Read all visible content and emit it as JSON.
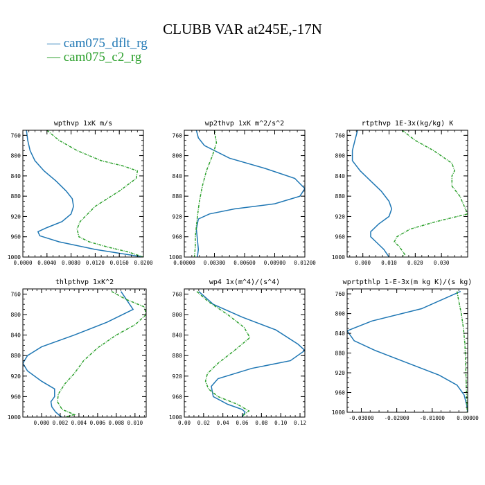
{
  "title": "CLUBB VAR at245E,-17N",
  "colors": {
    "series0": "#1f77b4",
    "series1": "#2ca02c",
    "axis": "#000000"
  },
  "legend": [
    {
      "label": "— cam075_dflt_rg",
      "color": "#1f77b4"
    },
    {
      "label": "— cam075_c2_rg",
      "color": "#2ca02c"
    }
  ],
  "chart_data": [
    {
      "type": "line",
      "title": "wpthvp  1xK m/s",
      "xlim": [
        0,
        0.02
      ],
      "ylim": [
        1000,
        750
      ],
      "xticks": [
        0,
        0.004,
        0.008,
        0.012,
        0.016,
        0.02
      ],
      "xtick_labels": [
        "0.0000",
        "0.0040",
        "0.0080",
        "0.0120",
        "0.0160",
        "0.0200"
      ],
      "yticks": [
        760,
        800,
        840,
        880,
        920,
        960,
        1000
      ],
      "series": [
        {
          "name": "cam075_dflt_rg",
          "x": [
            0.0006,
            0.0008,
            0.0012,
            0.002,
            0.0035,
            0.0055,
            0.0072,
            0.0082,
            0.0084,
            0.008,
            0.0065,
            0.004,
            0.0025,
            0.0028,
            0.006,
            0.012,
            0.02
          ],
          "y": [
            750,
            770,
            790,
            810,
            830,
            850,
            870,
            885,
            900,
            915,
            930,
            942,
            950,
            958,
            970,
            985,
            1000
          ]
        },
        {
          "name": "cam075_c2_rg",
          "x": [
            0.004,
            0.006,
            0.009,
            0.013,
            0.0165,
            0.019,
            0.0188,
            0.016,
            0.012,
            0.0095,
            0.009,
            0.0093,
            0.011,
            0.014,
            0.0175,
            0.02
          ],
          "y": [
            750,
            770,
            790,
            810,
            820,
            830,
            845,
            870,
            900,
            930,
            945,
            960,
            970,
            980,
            990,
            1000
          ]
        }
      ]
    },
    {
      "type": "line",
      "title": "wp2thvp  1xK m^2/s^2",
      "xlim": [
        0,
        0.012
      ],
      "ylim": [
        1000,
        750
      ],
      "xticks": [
        0,
        0.003,
        0.006,
        0.009,
        0.012
      ],
      "xtick_labels": [
        "0.00000",
        "0.00300",
        "0.00600",
        "0.00900",
        "0.01200"
      ],
      "yticks": [
        760,
        800,
        840,
        880,
        920,
        960,
        1000
      ],
      "series": [
        {
          "name": "cam075_dflt_rg",
          "x": [
            0.0012,
            0.0014,
            0.002,
            0.0045,
            0.008,
            0.011,
            0.012,
            0.0115,
            0.009,
            0.005,
            0.0025,
            0.0014,
            0.0012,
            0.0013,
            0.0014,
            0.0013
          ],
          "y": [
            750,
            765,
            780,
            805,
            825,
            845,
            865,
            880,
            895,
            905,
            915,
            925,
            945,
            965,
            985,
            1000
          ]
        },
        {
          "name": "cam075_c2_rg",
          "x": [
            0.003,
            0.0032,
            0.0028,
            0.0022,
            0.0018,
            0.0015,
            0.0013,
            0.0012,
            0.0011,
            0.0011,
            0.001
          ],
          "y": [
            750,
            775,
            800,
            830,
            860,
            890,
            920,
            940,
            960,
            980,
            1000
          ]
        }
      ]
    },
    {
      "type": "line",
      "title": "rtpthvp  1E-3x(kg/kg) K",
      "xlim": [
        -0.006,
        0.04
      ],
      "ylim": [
        1000,
        750
      ],
      "xticks": [
        0,
        0.01,
        0.02,
        0.03
      ],
      "xtick_labels": [
        "0.000",
        "0.010",
        "0.020",
        "0.030"
      ],
      "yticks": [
        760,
        800,
        840,
        880,
        920,
        960,
        1000
      ],
      "series": [
        {
          "name": "cam075_dflt_rg",
          "x": [
            -0.002,
            -0.003,
            -0.004,
            -0.004,
            -0.001,
            0.003,
            0.007,
            0.01,
            0.011,
            0.01,
            0.006,
            0.003,
            0.003,
            0.005,
            0.008,
            0.01
          ],
          "y": [
            750,
            770,
            790,
            810,
            830,
            850,
            870,
            890,
            905,
            920,
            935,
            950,
            960,
            970,
            985,
            1000
          ]
        },
        {
          "name": "cam075_c2_rg",
          "x": [
            0.015,
            0.02,
            0.027,
            0.034,
            0.035,
            0.034,
            0.034,
            0.037,
            0.04,
            0.028,
            0.018,
            0.013,
            0.012,
            0.014,
            0.016,
            0.015
          ],
          "y": [
            750,
            770,
            790,
            815,
            830,
            840,
            860,
            880,
            915,
            930,
            945,
            960,
            970,
            980,
            995,
            1000
          ]
        }
      ]
    },
    {
      "type": "line",
      "title": "thlpthvp  1xK^2",
      "xlim": [
        -0.002,
        0.0112
      ],
      "ylim": [
        1000,
        750
      ],
      "xticks": [
        0,
        0.002,
        0.004,
        0.006,
        0.008,
        0.01
      ],
      "xtick_labels": [
        "0.000",
        "0.002",
        "0.004",
        "0.006",
        "0.008",
        "0.010"
      ],
      "yticks": [
        760,
        800,
        840,
        880,
        920,
        960,
        1000
      ],
      "series": [
        {
          "name": "cam075_dflt_rg",
          "x": [
            0.0085,
            0.0098,
            0.007,
            0.0035,
            0.0,
            -0.0015,
            -0.002,
            -0.0015,
            0.0,
            0.0014,
            0.0014,
            0.001,
            0.0011,
            0.0015,
            0.002,
            0.0022
          ],
          "y": [
            755,
            790,
            815,
            840,
            863,
            880,
            895,
            910,
            930,
            945,
            960,
            970,
            980,
            990,
            998,
            1000
          ]
        },
        {
          "name": "cam075_c2_rg",
          "x": [
            0.0075,
            0.009,
            0.011,
            0.0112,
            0.01,
            0.008,
            0.006,
            0.0045,
            0.0035,
            0.0025,
            0.0018,
            0.0017,
            0.0022,
            0.0035,
            0.0025
          ],
          "y": [
            755,
            770,
            785,
            800,
            820,
            840,
            865,
            890,
            915,
            935,
            955,
            970,
            985,
            995,
            1000
          ]
        }
      ]
    },
    {
      "type": "line",
      "title": "wp4  1x(m^4)/(s^4)",
      "xlim": [
        0,
        0.125
      ],
      "ylim": [
        1000,
        750
      ],
      "xticks": [
        0,
        0.02,
        0.04,
        0.06,
        0.08,
        0.1,
        0.12
      ],
      "xtick_labels": [
        "0.00",
        "0.02",
        "0.04",
        "0.06",
        "0.08",
        "0.10",
        "0.12"
      ],
      "yticks": [
        760,
        800,
        840,
        880,
        920,
        960,
        1000
      ],
      "series": [
        {
          "name": "cam075_dflt_rg",
          "x": [
            0.015,
            0.03,
            0.06,
            0.095,
            0.118,
            0.125,
            0.11,
            0.07,
            0.035,
            0.028,
            0.03,
            0.045,
            0.06,
            0.063,
            0.06
          ],
          "y": [
            755,
            780,
            805,
            830,
            858,
            870,
            890,
            905,
            925,
            940,
            960,
            975,
            985,
            990,
            1000
          ]
        },
        {
          "name": "cam075_c2_rg",
          "x": [
            0.013,
            0.025,
            0.045,
            0.062,
            0.068,
            0.052,
            0.035,
            0.024,
            0.022,
            0.025,
            0.035,
            0.055,
            0.067,
            0.062,
            0.06
          ],
          "y": [
            755,
            775,
            800,
            825,
            845,
            870,
            895,
            915,
            930,
            945,
            960,
            975,
            988,
            995,
            1000
          ]
        }
      ]
    },
    {
      "type": "line",
      "title": "wprtpthlp  1-E-3x(m kg K)/(s kg)",
      "xlim": [
        -0.034,
        0
      ],
      "ylim": [
        1000,
        750
      ],
      "xticks": [
        -0.03,
        -0.02,
        -0.01,
        0
      ],
      "xtick_labels": [
        "-0.03000",
        "-0.02000",
        "-0.01000",
        "0.00000"
      ],
      "yticks": [
        760,
        800,
        840,
        880,
        920,
        960,
        1000
      ],
      "series": [
        {
          "name": "cam075_dflt_rg",
          "x": [
            -0.002,
            -0.013,
            -0.027,
            -0.034,
            -0.032,
            -0.026,
            -0.017,
            -0.008,
            -0.003,
            -0.001,
            -0.0003,
            0.0
          ],
          "y": [
            755,
            790,
            815,
            835,
            855,
            875,
            900,
            925,
            945,
            965,
            985,
            1000
          ]
        },
        {
          "name": "cam075_c2_rg",
          "x": [
            -0.003,
            -0.0025,
            -0.0018,
            -0.0012,
            -0.0008,
            -0.0006,
            -0.0005,
            -0.0004,
            -0.0003,
            -0.0002,
            -0.0001
          ],
          "y": [
            755,
            775,
            800,
            830,
            860,
            890,
            920,
            950,
            970,
            990,
            1000
          ]
        }
      ]
    }
  ]
}
